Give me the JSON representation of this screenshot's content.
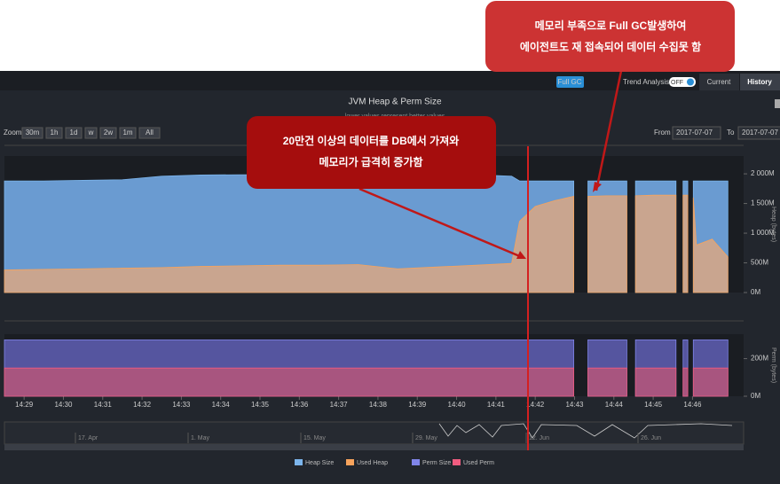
{
  "toolbar": {
    "full_gc": "Full GC",
    "trend_analysis": "Trend Analysis",
    "toggle": "OFF",
    "tabs": [
      "Current",
      "History"
    ]
  },
  "title": "JVM Heap & Perm Size",
  "subtitle": "lower values represent better values",
  "zoom": {
    "label": "Zoom",
    "buttons": [
      "30m",
      "1h",
      "1d",
      "w",
      "2w",
      "1m",
      "All"
    ]
  },
  "range": {
    "from_label": "From",
    "from": "2017-07-07",
    "to_label": "To",
    "to": "2017-07-07"
  },
  "annotations": [
    {
      "lines": [
        "메모리 부족으로 Full GC발생하여",
        "에이전트도 재 접속되어 데이터 수집못 함"
      ]
    },
    {
      "lines": [
        "20만건 이상의 데이터를 DB에서 가져와",
        "메모리가 급격히 증가함"
      ]
    }
  ],
  "navigator": {
    "labels": [
      "17. Apr",
      "1. May",
      "15. May",
      "29. May",
      "12. Jun",
      "26. Jun"
    ]
  },
  "chart_data": [
    {
      "type": "area",
      "y_label": "Heap (bytes)",
      "xlim": [
        868.5,
        887.3
      ],
      "ylim": [
        0,
        2300
      ],
      "yticks": [
        {
          "value": 0,
          "label": "0M"
        },
        {
          "value": 500,
          "label": "500M"
        },
        {
          "value": 1000,
          "label": "1 000M"
        },
        {
          "value": 1500,
          "label": "1 500M"
        },
        {
          "value": 2000,
          "label": "2 000M"
        }
      ],
      "x": [
        868.5,
        869.5,
        870.5,
        871.5,
        872.5,
        873.5,
        874.5,
        875.5,
        876.5,
        877.5,
        878.5,
        879.5,
        880.5,
        881.4,
        881.6,
        882.0,
        882.5,
        882.98,
        883.15,
        883.34,
        883.8,
        884.33,
        884.45,
        884.55,
        885.0,
        885.58,
        885.67,
        885.76,
        885.88,
        885.97,
        886.02,
        886.1,
        886.5,
        886.9
      ],
      "series": [
        {
          "name": "Heap Size",
          "color": "#7cb5ec",
          "fill": "#6a9bd1",
          "values": [
            1880,
            1880,
            1890,
            1900,
            1960,
            1980,
            1985,
            1985,
            1985,
            1985,
            1985,
            1985,
            1985,
            1960,
            1880,
            1880,
            1880,
            1880,
            null,
            1880,
            1880,
            1880,
            null,
            1880,
            1880,
            1880,
            null,
            1880,
            1880,
            null,
            1880,
            1880,
            1880,
            1880
          ]
        },
        {
          "name": "Used Heap",
          "color": "#f7a35c",
          "fill": "#c9a58f",
          "values": [
            380,
            390,
            400,
            410,
            420,
            440,
            450,
            460,
            460,
            470,
            400,
            430,
            460,
            490,
            1200,
            1450,
            1550,
            1620,
            null,
            1620,
            1630,
            1630,
            null,
            1630,
            1640,
            1640,
            null,
            1640,
            1640,
            null,
            1600,
            800,
            900,
            600
          ]
        }
      ]
    },
    {
      "type": "area",
      "y_label": "Perm (bytes)",
      "xlim": [
        868.5,
        887.3
      ],
      "ylim": [
        0,
        330
      ],
      "yticks": [
        {
          "value": 0,
          "label": "0M"
        },
        {
          "value": 200,
          "label": "200M"
        }
      ],
      "xticks": [
        {
          "value": 869,
          "label": "14:29"
        },
        {
          "value": 870,
          "label": "14:30"
        },
        {
          "value": 871,
          "label": "14:31"
        },
        {
          "value": 872,
          "label": "14:32"
        },
        {
          "value": 873,
          "label": "14:33"
        },
        {
          "value": 874,
          "label": "14:34"
        },
        {
          "value": 875,
          "label": "14:35"
        },
        {
          "value": 876,
          "label": "14:36"
        },
        {
          "value": 877,
          "label": "14:37"
        },
        {
          "value": 878,
          "label": "14:38"
        },
        {
          "value": 879,
          "label": "14:39"
        },
        {
          "value": 880,
          "label": "14:40"
        },
        {
          "value": 881,
          "label": "14:41"
        },
        {
          "value": 882,
          "label": "14:42"
        },
        {
          "value": 883,
          "label": "14:43"
        },
        {
          "value": 884,
          "label": "14:44"
        },
        {
          "value": 885,
          "label": "14:45"
        },
        {
          "value": 886,
          "label": "14:46"
        }
      ],
      "x": [
        868.5,
        869.5,
        870.5,
        871.5,
        872.5,
        873.5,
        874.5,
        875.5,
        876.5,
        877.5,
        878.5,
        879.5,
        880.5,
        881.4,
        881.6,
        882.0,
        882.5,
        882.98,
        883.15,
        883.34,
        883.8,
        884.33,
        884.45,
        884.55,
        885.0,
        885.58,
        885.67,
        885.76,
        885.88,
        885.97,
        886.02,
        886.1,
        886.5,
        886.9
      ],
      "series": [
        {
          "name": "Perm Size",
          "color": "#8085e9",
          "fill": "#55559f",
          "values": [
            300,
            300,
            300,
            300,
            300,
            300,
            300,
            300,
            300,
            300,
            300,
            300,
            300,
            300,
            300,
            300,
            300,
            300,
            null,
            300,
            300,
            300,
            null,
            300,
            300,
            300,
            null,
            300,
            300,
            null,
            300,
            300,
            300,
            300
          ]
        },
        {
          "name": "Used Perm",
          "color": "#f15c80",
          "fill": "#a8557f",
          "values": [
            150,
            150,
            150,
            150,
            150,
            150,
            150,
            150,
            150,
            150,
            150,
            150,
            150,
            150,
            150,
            150,
            150,
            150,
            null,
            150,
            150,
            150,
            null,
            150,
            150,
            150,
            null,
            150,
            150,
            null,
            150,
            150,
            150,
            150
          ]
        }
      ]
    }
  ]
}
